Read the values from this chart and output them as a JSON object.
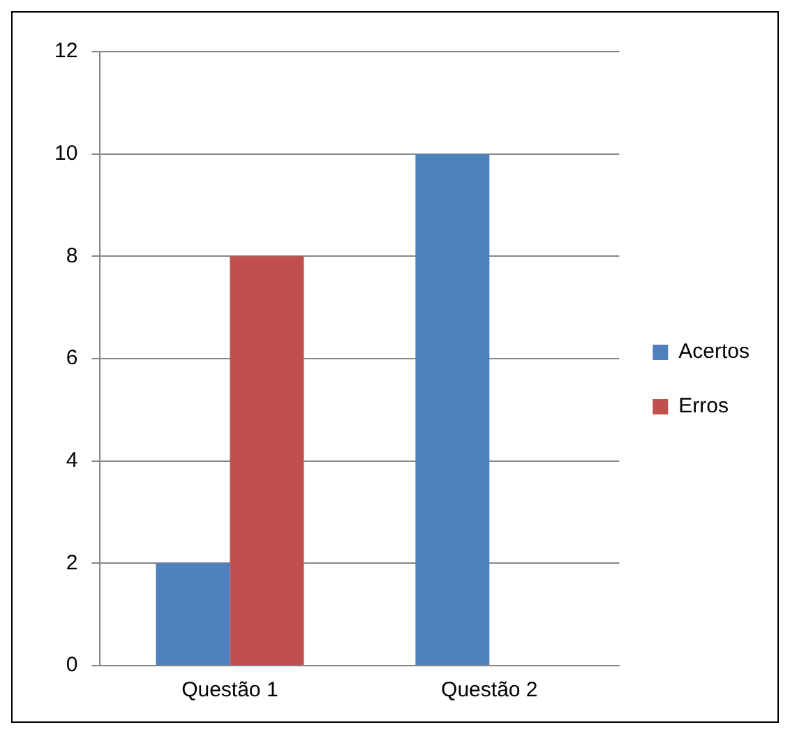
{
  "chart_data": {
    "type": "bar",
    "categories": [
      "Questão 1",
      "Questão 2"
    ],
    "series": [
      {
        "name": "Acertos",
        "color": "#4f81bd",
        "values": [
          2,
          10
        ]
      },
      {
        "name": "Erros",
        "color": "#c0504d",
        "values": [
          8,
          0
        ]
      }
    ],
    "ylim": [
      0,
      12
    ],
    "yticks": [
      0,
      2,
      4,
      6,
      8,
      10,
      12
    ],
    "grid": "y",
    "legend": "right"
  }
}
